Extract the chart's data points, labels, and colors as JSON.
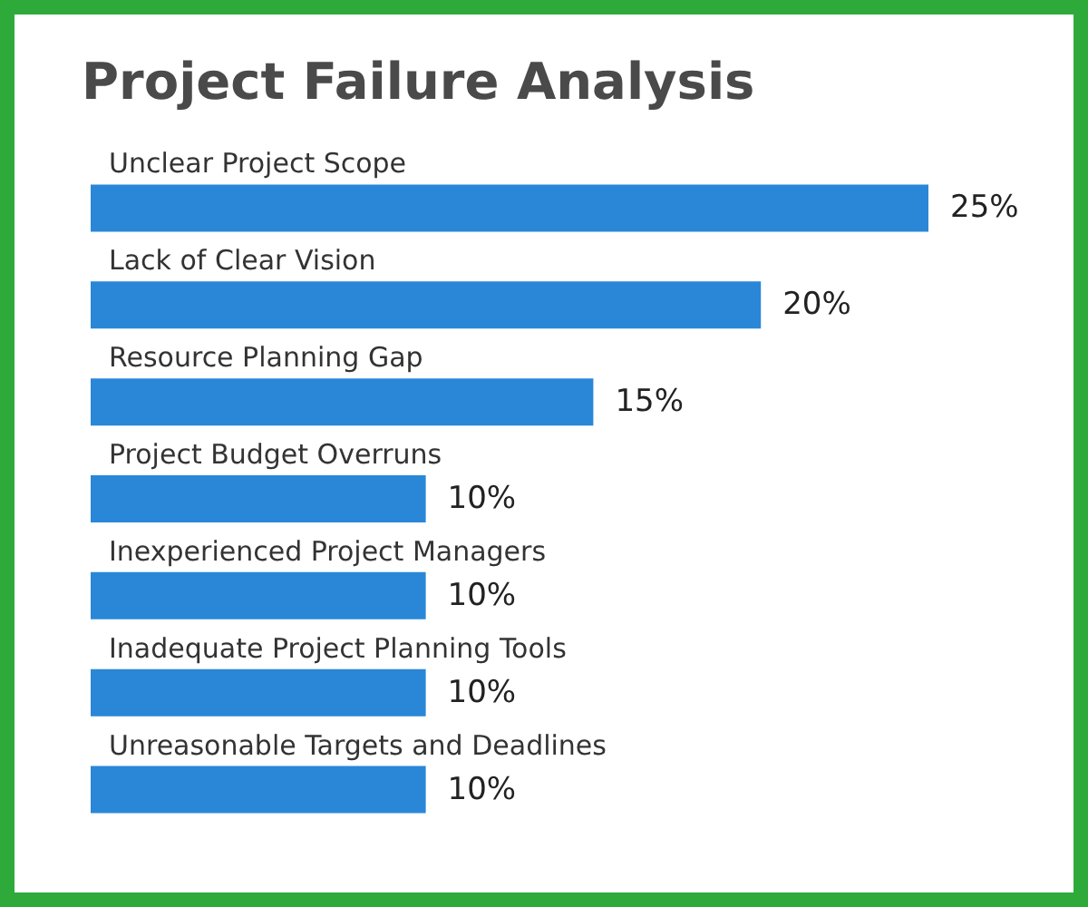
{
  "chart_data": {
    "type": "bar",
    "orientation": "horizontal",
    "title": "Project Failure Analysis",
    "categories": [
      "Unclear Project Scope",
      "Lack of Clear Vision",
      "Resource Planning Gap",
      "Project Budget Overruns",
      "Inexperienced Project Managers",
      "Inadequate Project Planning Tools",
      "Unreasonable Targets and Deadlines"
    ],
    "values": [
      25,
      20,
      15,
      10,
      10,
      10,
      10
    ],
    "value_labels": [
      "25%",
      "20%",
      "15%",
      "10%",
      "10%",
      "10%",
      "10%"
    ],
    "color": "#2a87d8"
  }
}
